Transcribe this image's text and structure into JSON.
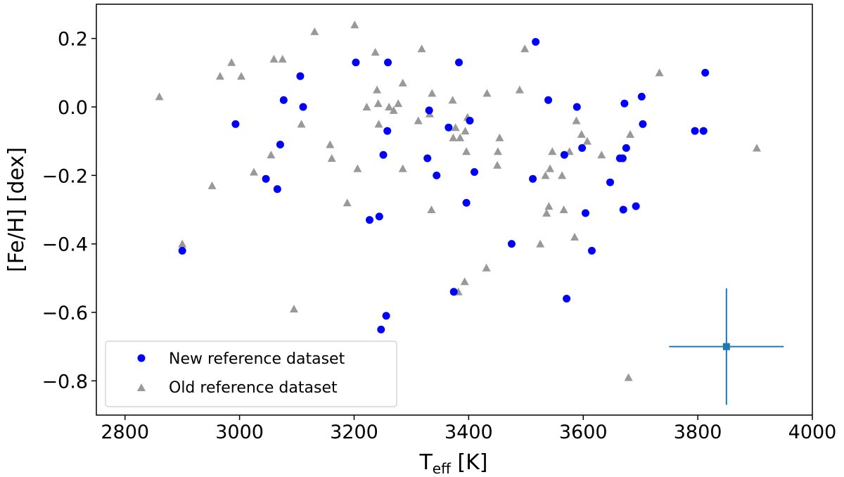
{
  "chart_data": {
    "type": "scatter",
    "xlabel": {
      "main": "T",
      "sub": "eff",
      "unit": " [K]"
    },
    "ylabel": "[Fe/H] [dex]",
    "xlim": [
      2750,
      4000
    ],
    "ylim": [
      -0.9,
      0.3
    ],
    "xticks": [
      2800,
      3000,
      3200,
      3400,
      3600,
      3800,
      4000
    ],
    "yticks": [
      0.2,
      0.0,
      -0.2,
      -0.4,
      -0.6,
      -0.8
    ],
    "ytick_labels": [
      "0.2",
      "0.0",
      "−0.2",
      "−0.4",
      "−0.6",
      "−0.8"
    ],
    "grid": false,
    "legend_position": "lower-left",
    "series": [
      {
        "name": "New reference dataset",
        "marker": "circle",
        "color": "#0000ff",
        "points": [
          [
            2900,
            -0.42
          ],
          [
            2993,
            -0.05
          ],
          [
            3046,
            -0.21
          ],
          [
            3066,
            -0.24
          ],
          [
            3071,
            -0.11
          ],
          [
            3077,
            0.02
          ],
          [
            3106,
            0.09
          ],
          [
            3111,
            0.0
          ],
          [
            3203,
            0.13
          ],
          [
            3227,
            -0.33
          ],
          [
            3244,
            -0.32
          ],
          [
            3247,
            -0.65
          ],
          [
            3251,
            -0.14
          ],
          [
            3256,
            -0.61
          ],
          [
            3258,
            -0.07
          ],
          [
            3259,
            0.13
          ],
          [
            3328,
            -0.15
          ],
          [
            3331,
            -0.01
          ],
          [
            3344,
            -0.2
          ],
          [
            3365,
            -0.06
          ],
          [
            3374,
            -0.54
          ],
          [
            3383,
            0.13
          ],
          [
            3396,
            -0.28
          ],
          [
            3402,
            -0.04
          ],
          [
            3410,
            -0.19
          ],
          [
            3475,
            -0.4
          ],
          [
            3512,
            -0.21
          ],
          [
            3517,
            0.19
          ],
          [
            3539,
            0.02
          ],
          [
            3567,
            -0.14
          ],
          [
            3571,
            -0.56
          ],
          [
            3589,
            0.0
          ],
          [
            3598,
            -0.12
          ],
          [
            3604,
            -0.31
          ],
          [
            3615,
            -0.42
          ],
          [
            3647,
            -0.22
          ],
          [
            3664,
            -0.15
          ],
          [
            3669,
            -0.15
          ],
          [
            3670,
            -0.3
          ],
          [
            3672,
            0.01
          ],
          [
            3675,
            -0.12
          ],
          [
            3692,
            -0.29
          ],
          [
            3702,
            0.03
          ],
          [
            3704,
            -0.05
          ],
          [
            3795,
            -0.07
          ],
          [
            3810,
            -0.07
          ],
          [
            3813,
            0.1
          ]
        ]
      },
      {
        "name": "Old reference dataset",
        "marker": "triangle",
        "color": "#999999",
        "points": [
          [
            2860,
            0.03
          ],
          [
            2900,
            -0.4
          ],
          [
            2952,
            -0.23
          ],
          [
            2966,
            0.09
          ],
          [
            2986,
            0.13
          ],
          [
            3003,
            0.09
          ],
          [
            3025,
            -0.19
          ],
          [
            3055,
            -0.14
          ],
          [
            3060,
            0.14
          ],
          [
            3075,
            0.14
          ],
          [
            3095,
            -0.59
          ],
          [
            3108,
            -0.05
          ],
          [
            3131,
            0.22
          ],
          [
            3158,
            -0.11
          ],
          [
            3161,
            -0.15
          ],
          [
            3188,
            -0.28
          ],
          [
            3201,
            0.24
          ],
          [
            3206,
            -0.18
          ],
          [
            3222,
            0.0
          ],
          [
            3237,
            0.16
          ],
          [
            3240,
            0.05
          ],
          [
            3242,
            0.01
          ],
          [
            3243,
            -0.05
          ],
          [
            3261,
            0.0
          ],
          [
            3269,
            -0.01
          ],
          [
            3277,
            0.01
          ],
          [
            3285,
            -0.18
          ],
          [
            3285,
            0.07
          ],
          [
            3312,
            -0.04
          ],
          [
            3318,
            0.17
          ],
          [
            3332,
            -0.02
          ],
          [
            3335,
            -0.3
          ],
          [
            3336,
            0.04
          ],
          [
            3372,
            0.02
          ],
          [
            3373,
            -0.09
          ],
          [
            3377,
            -0.06
          ],
          [
            3382,
            -0.54
          ],
          [
            3385,
            -0.09
          ],
          [
            3393,
            -0.51
          ],
          [
            3394,
            -0.07
          ],
          [
            3396,
            -0.13
          ],
          [
            3398,
            -0.03
          ],
          [
            3431,
            -0.47
          ],
          [
            3432,
            0.04
          ],
          [
            3450,
            -0.17
          ],
          [
            3451,
            -0.13
          ],
          [
            3454,
            -0.09
          ],
          [
            3489,
            0.05
          ],
          [
            3498,
            0.17
          ],
          [
            3525,
            -0.4
          ],
          [
            3534,
            -0.2
          ],
          [
            3536,
            -0.31
          ],
          [
            3540,
            -0.29
          ],
          [
            3542,
            -0.18
          ],
          [
            3546,
            -0.13
          ],
          [
            3563,
            -0.2
          ],
          [
            3566,
            -0.3
          ],
          [
            3576,
            -0.13
          ],
          [
            3585,
            -0.38
          ],
          [
            3588,
            -0.04
          ],
          [
            3597,
            -0.08
          ],
          [
            3607,
            -0.1
          ],
          [
            3632,
            -0.14
          ],
          [
            3679,
            -0.79
          ],
          [
            3682,
            -0.08
          ],
          [
            3733,
            0.1
          ],
          [
            3903,
            -0.12
          ]
        ]
      }
    ],
    "error_bar": {
      "x": 3850,
      "y": -0.7,
      "xerr": 100,
      "yerr": 0.17,
      "color": "#1f77b4"
    }
  }
}
